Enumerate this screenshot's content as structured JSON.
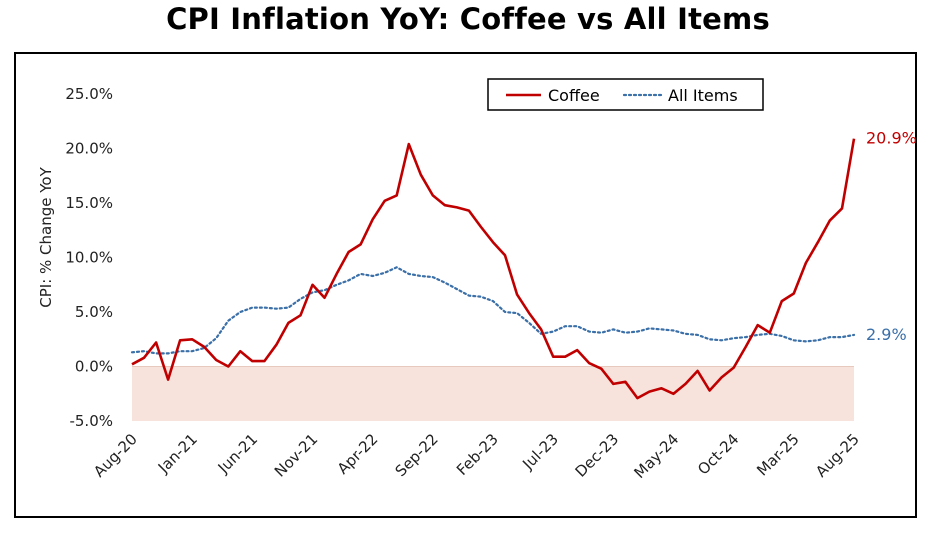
{
  "chart_data": {
    "type": "line",
    "title": "CPI Inflation YoY: Coffee vs All Items",
    "xlabel": "",
    "ylabel": "CPI: % Change YoY",
    "ylim": [
      -5,
      25
    ],
    "yticks": [
      "-5.0%",
      "0.0%",
      "5.0%",
      "10.0%",
      "15.0%",
      "20.0%",
      "25.0%"
    ],
    "ytick_values": [
      -5,
      0,
      5,
      10,
      15,
      20,
      25
    ],
    "x": [
      "Aug-20",
      "Sep-20",
      "Oct-20",
      "Nov-20",
      "Dec-20",
      "Jan-21",
      "Feb-21",
      "Mar-21",
      "Apr-21",
      "May-21",
      "Jun-21",
      "Jul-21",
      "Aug-21",
      "Sep-21",
      "Oct-21",
      "Nov-21",
      "Dec-21",
      "Jan-22",
      "Feb-22",
      "Mar-22",
      "Apr-22",
      "May-22",
      "Jun-22",
      "Jul-22",
      "Aug-22",
      "Sep-22",
      "Oct-22",
      "Nov-22",
      "Dec-22",
      "Jan-23",
      "Feb-23",
      "Mar-23",
      "Apr-23",
      "May-23",
      "Jun-23",
      "Jul-23",
      "Aug-23",
      "Sep-23",
      "Oct-23",
      "Nov-23",
      "Dec-23",
      "Jan-24",
      "Feb-24",
      "Mar-24",
      "Apr-24",
      "May-24",
      "Jun-24",
      "Jul-24",
      "Aug-24",
      "Sep-24",
      "Oct-24",
      "Nov-24",
      "Dec-24",
      "Jan-25",
      "Feb-25",
      "Mar-25",
      "Apr-25",
      "May-25",
      "Jun-25",
      "Jul-25",
      "Aug-25"
    ],
    "xtick_labels": [
      "Aug-20",
      "Jan-21",
      "Jun-21",
      "Nov-21",
      "Apr-22",
      "Sep-22",
      "Feb-23",
      "Jul-23",
      "Dec-23",
      "May-24",
      "Oct-24",
      "Mar-25",
      "Aug-25"
    ],
    "series": [
      {
        "name": "Coffee",
        "color": "#c00000",
        "style": "solid",
        "end_label": "20.9%",
        "values": [
          0.2,
          0.8,
          2.2,
          -1.2,
          2.4,
          2.5,
          1.8,
          0.6,
          0.0,
          1.4,
          0.5,
          0.5,
          2.0,
          4.0,
          4.7,
          7.5,
          6.3,
          8.5,
          10.5,
          11.2,
          13.5,
          15.2,
          15.7,
          20.4,
          17.6,
          15.7,
          14.8,
          14.6,
          14.3,
          12.8,
          11.4,
          10.2,
          6.6,
          4.9,
          3.4,
          0.9,
          0.9,
          1.5,
          0.3,
          -0.2,
          -1.6,
          -1.4,
          -2.9,
          -2.3,
          -2.0,
          -2.5,
          -1.6,
          -0.4,
          -2.2,
          -1.0,
          -0.1,
          1.8,
          3.8,
          3.1,
          6.0,
          6.7,
          9.5,
          11.4,
          13.4,
          14.5,
          20.9
        ]
      },
      {
        "name": "All Items",
        "color": "#3a6fa8",
        "style": "dotted",
        "end_label": "2.9%",
        "values": [
          1.3,
          1.4,
          1.2,
          1.2,
          1.4,
          1.4,
          1.7,
          2.6,
          4.2,
          5.0,
          5.4,
          5.4,
          5.3,
          5.4,
          6.2,
          6.8,
          7.0,
          7.5,
          7.9,
          8.5,
          8.3,
          8.6,
          9.1,
          8.5,
          8.3,
          8.2,
          7.7,
          7.1,
          6.5,
          6.4,
          6.0,
          5.0,
          4.9,
          4.0,
          3.0,
          3.2,
          3.7,
          3.7,
          3.2,
          3.1,
          3.4,
          3.1,
          3.2,
          3.5,
          3.4,
          3.3,
          3.0,
          2.9,
          2.5,
          2.4,
          2.6,
          2.7,
          2.9,
          3.0,
          2.8,
          2.4,
          2.3,
          2.4,
          2.7,
          2.7,
          2.9
        ]
      }
    ],
    "shaded_region": {
      "from": -5,
      "to": 0,
      "color": "#f7e3dc"
    },
    "legend_position": "top-right",
    "grid": false
  }
}
